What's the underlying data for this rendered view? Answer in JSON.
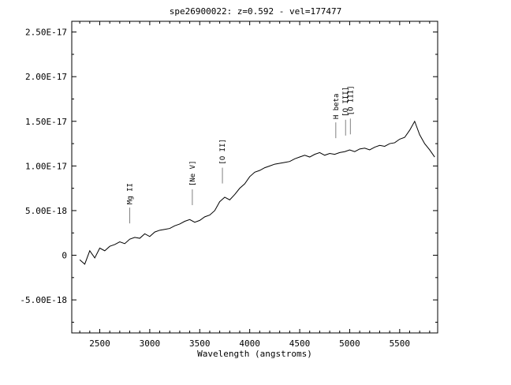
{
  "chart_data": {
    "type": "line",
    "title": "spe26900022: z=0.592 - vel=177477",
    "xlabel": "Wavelength (angstroms)",
    "ylabel": "",
    "xlim": [
      2220,
      5880
    ],
    "ylim": [
      -8.7e-18,
      2.62e-17
    ],
    "x_ticks": [
      2500,
      3000,
      3500,
      4000,
      4500,
      5000,
      5500
    ],
    "x_tick_labels": [
      "2500",
      "3000",
      "3500",
      "4000",
      "4500",
      "5000",
      "5500"
    ],
    "y_ticks": [
      -5e-18,
      0,
      5e-18,
      1e-17,
      1.5e-17,
      2e-17,
      2.5e-17
    ],
    "y_tick_labels": [
      "-5.00E-18",
      "0",
      "5.00E-18",
      "1.00E-17",
      "1.50E-17",
      "2.00E-17",
      "2.50E-17"
    ],
    "grid": false,
    "series": [
      {
        "color": "#000000",
        "x": [
          2300,
          2350,
          2400,
          2450,
          2500,
          2550,
          2600,
          2650,
          2700,
          2750,
          2800,
          2850,
          2900,
          2950,
          3000,
          3050,
          3100,
          3150,
          3200,
          3250,
          3300,
          3350,
          3400,
          3450,
          3500,
          3550,
          3600,
          3650,
          3700,
          3750,
          3800,
          3850,
          3900,
          3950,
          4000,
          4050,
          4100,
          4150,
          4200,
          4250,
          4300,
          4350,
          4400,
          4450,
          4500,
          4550,
          4600,
          4650,
          4700,
          4750,
          4800,
          4850,
          4900,
          4950,
          5000,
          5050,
          5100,
          5150,
          5200,
          5250,
          5300,
          5350,
          5400,
          5450,
          5500,
          5550,
          5600,
          5650,
          5700,
          5750,
          5800,
          5850
        ],
        "y": [
          -5e-19,
          -1e-18,
          5e-19,
          -3e-19,
          8e-19,
          5e-19,
          1e-18,
          1.2e-18,
          1.5e-18,
          1.3e-18,
          1.8e-18,
          2e-18,
          1.9e-18,
          2.4e-18,
          2.1e-18,
          2.6e-18,
          2.8e-18,
          2.9e-18,
          3e-18,
          3.3e-18,
          3.5e-18,
          3.8e-18,
          4e-18,
          3.7e-18,
          3.9e-18,
          4.3e-18,
          4.5e-18,
          5e-18,
          6e-18,
          6.5e-18,
          6.2e-18,
          6.8e-18,
          7.5e-18,
          8e-18,
          8.8e-18,
          9.3e-18,
          9.5e-18,
          9.8e-18,
          1e-17,
          1.02e-17,
          1.03e-17,
          1.04e-17,
          1.05e-17,
          1.08e-17,
          1.1e-17,
          1.12e-17,
          1.1e-17,
          1.13e-17,
          1.15e-17,
          1.12e-17,
          1.14e-17,
          1.13e-17,
          1.15e-17,
          1.16e-17,
          1.18e-17,
          1.16e-17,
          1.19e-17,
          1.2e-17,
          1.18e-17,
          1.21e-17,
          1.23e-17,
          1.22e-17,
          1.25e-17,
          1.26e-17,
          1.3e-17,
          1.32e-17,
          1.4e-17,
          1.5e-17,
          1.35e-17,
          1.25e-17,
          1.18e-17,
          1.1e-17
        ]
      }
    ],
    "line_labels": [
      {
        "text": "Mg II",
        "x": 2800
      },
      {
        "text": "[Ne V]",
        "x": 3426
      },
      {
        "text": "[O II]",
        "x": 3727
      },
      {
        "text": "H beta",
        "x": 4861
      },
      {
        "text": "[O III]",
        "x": 4959
      },
      {
        "text": "[O III]",
        "x": 5007
      }
    ]
  }
}
